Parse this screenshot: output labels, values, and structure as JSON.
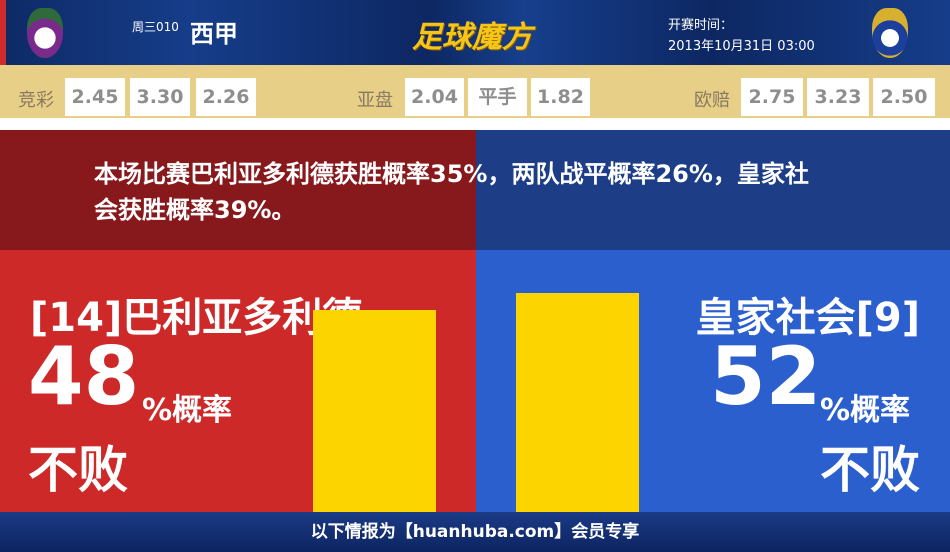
{
  "header": {
    "week_code": "周三010",
    "league": "西甲",
    "logo_text": "足球魔方",
    "kickoff_label": "开赛时间：",
    "kickoff_time": "2013年10月31日 03:00"
  },
  "odds": {
    "jingcai": {
      "label": "竞彩",
      "values": [
        "2.45",
        "3.30",
        "2.26"
      ]
    },
    "asian": {
      "label": "亚盘",
      "values": [
        "2.04",
        "平手",
        "1.82"
      ]
    },
    "euro": {
      "label": "欧赔",
      "values": [
        "2.75",
        "3.23",
        "2.50"
      ]
    }
  },
  "summary": "本场比赛巴利亚多利德获胜概率35%，两队战平概率26%，皇家社会获胜概率39%。",
  "home": {
    "name": "[14]巴利亚多利德",
    "percent": 48,
    "percent_text": "48",
    "suffix": "%概率",
    "result": "不败",
    "color": "#cd2929"
  },
  "away": {
    "name": "皇家社会[9]",
    "percent": 52,
    "percent_text": "52",
    "suffix": "%概率",
    "result": "不败",
    "color": "#2a5fcd"
  },
  "bar_color": "#fcd400",
  "footer": "以下情报为【huanhuba.com】会员专享"
}
